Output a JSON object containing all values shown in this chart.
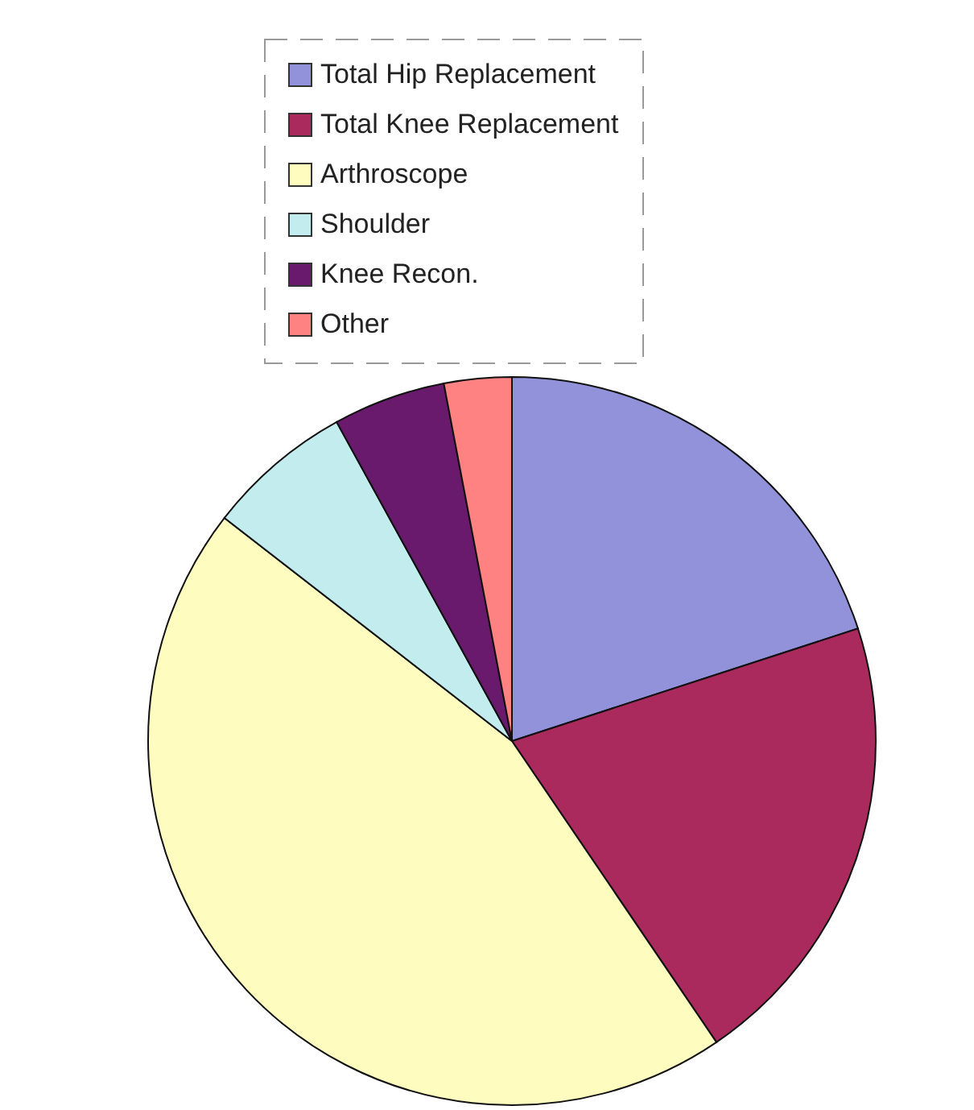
{
  "chart_data": {
    "type": "pie",
    "categories": [
      "Total Hip Replacement",
      "Total Knee Replacement",
      "Arthroscope",
      "Shoulder",
      "Knee Recon.",
      "Other"
    ],
    "values": [
      20,
      20.5,
      45,
      6.5,
      5,
      3
    ],
    "colors": [
      "#9292da",
      "#aa2a5e",
      "#fffcc0",
      "#c2ecee",
      "#6a1a6c",
      "#ff8282"
    ],
    "legend": "top"
  }
}
